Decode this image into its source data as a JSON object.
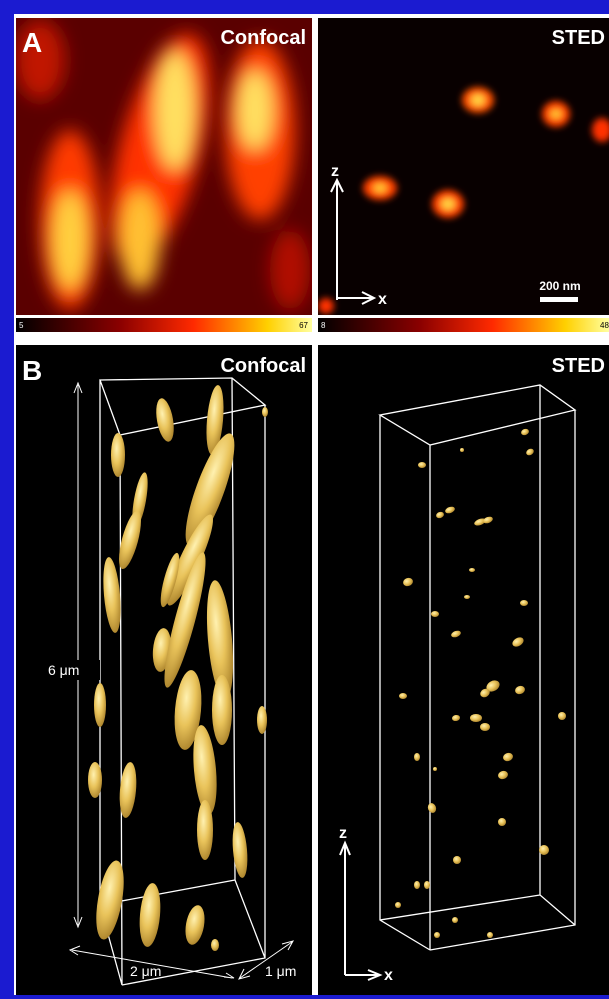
{
  "panel_a": {
    "label": "A",
    "confocal": {
      "title": "Confocal",
      "colorbar_min": "5",
      "colorbar_max": "67"
    },
    "sted": {
      "title": "STED",
      "axis_z": "z",
      "axis_x": "x",
      "scale_bar": "200 nm",
      "colorbar_min": "8",
      "colorbar_max": "48"
    }
  },
  "panel_b": {
    "label": "B",
    "confocal": {
      "title": "Confocal",
      "height_label": "6 μm",
      "width_label": "2 μm",
      "depth_label": "1 μm"
    },
    "sted": {
      "title": "STED",
      "axis_z": "z",
      "axis_x": "x"
    }
  }
}
